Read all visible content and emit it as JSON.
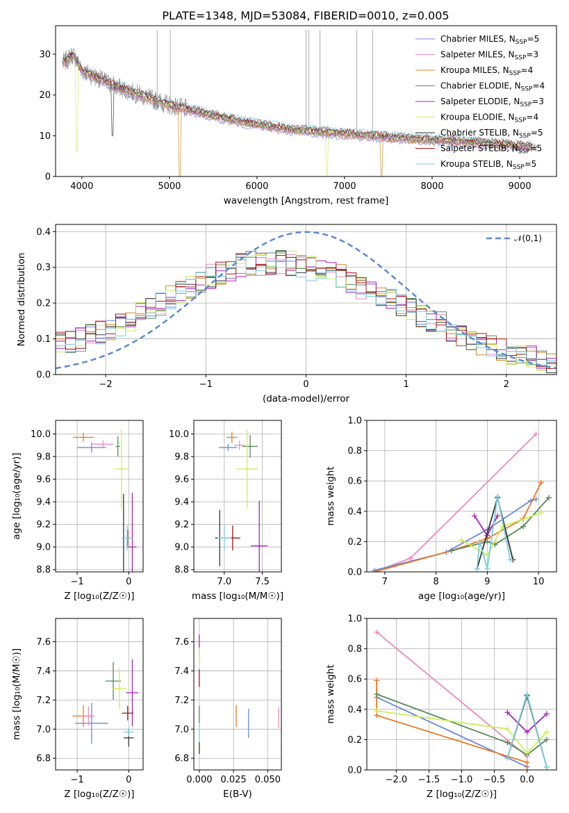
{
  "figure_title": "PLATE=1348, MJD=53084, FIBERID=0010, z=0.005",
  "colors": {
    "Chabrier MILES": "#6688dd",
    "Salpeter MILES": "#ee88bb",
    "Kroupa MILES": "#cc8822",
    "Chabrier ELODIE": "#558855",
    "Salpeter ELODIE": "#aa22bb",
    "Kroupa ELODIE": "#ccee55",
    "Chabrier STELIB": "#333333",
    "Salpeter STELIB": "#aa1111",
    "Kroupa STELIB": "#77ccdd",
    "extra_orange": "#ee7722",
    "gauss": "#5b88d6"
  },
  "chart_data": [
    {
      "id": "spectrum",
      "type": "line",
      "xlabel": "wavelength [Angstrom, rest frame]",
      "xlim": [
        3700,
        9420
      ],
      "ylim": [
        0,
        37
      ],
      "xticks": [
        "4000",
        "5000",
        "6000",
        "7000",
        "8000",
        "9000"
      ],
      "yticks": [
        "0",
        "10",
        "20",
        "30"
      ],
      "legend_position": "upper right",
      "legend": [
        {
          "name": "Chabrier MILES",
          "suffix": "=5"
        },
        {
          "name": "Salpeter MILES",
          "suffix": "=3"
        },
        {
          "name": "Kroupa MILES",
          "suffix": "=4"
        },
        {
          "name": "Chabrier ELODIE",
          "suffix": "=4"
        },
        {
          "name": "Salpeter ELODIE",
          "suffix": "=3"
        },
        {
          "name": "Kroupa ELODIE",
          "suffix": "=4"
        },
        {
          "name": "Chabrier STELIB",
          "suffix": "=5"
        },
        {
          "name": "Salpeter STELIB",
          "suffix": "=5"
        },
        {
          "name": "Kroupa STELIB",
          "suffix": "=5"
        }
      ],
      "continuum_x": [
        3800,
        3900,
        4000,
        4200,
        4400,
        4600,
        4800,
        5000,
        5200,
        5500,
        5800,
        6100,
        6400,
        6700,
        7000,
        7400,
        7800,
        8200,
        8600,
        9000,
        9200
      ],
      "continuum_y": [
        28,
        30,
        26,
        24,
        22,
        20.5,
        19,
        17.5,
        16.5,
        15,
        13.5,
        12.5,
        11.5,
        11,
        10.5,
        9.8,
        9.2,
        8.8,
        8.2,
        7.5,
        7.2
      ]
    },
    {
      "id": "residuals",
      "type": "area",
      "xlabel": "(data-model)/error",
      "ylabel": "Normed distribution",
      "xlim": [
        -2.5,
        2.5
      ],
      "ylim": [
        0,
        0.42
      ],
      "xticks": [
        "−2",
        "−1",
        "0",
        "1",
        "2"
      ],
      "yticks": [
        "0.0",
        "0.1",
        "0.2",
        "0.3",
        "0.4"
      ],
      "legend": "𝒩(0,1)",
      "legend_position": "upper right",
      "bin_width": 0.1,
      "profile_x": [
        -2.5,
        -2.0,
        -1.5,
        -1.0,
        -0.6,
        -0.2,
        0.0,
        0.3,
        0.6,
        1.0,
        1.5,
        2.0,
        2.5
      ],
      "profile_y": [
        0.08,
        0.12,
        0.19,
        0.27,
        0.31,
        0.315,
        0.3,
        0.28,
        0.24,
        0.19,
        0.12,
        0.06,
        0.03
      ]
    },
    {
      "id": "age-vs-Z",
      "type": "scatter",
      "xlabel": "Z [log₁₀(Z/Z☉)]",
      "ylabel": "age  [log₁₀(age/yr)]",
      "xlim": [
        -1.42,
        0.28
      ],
      "ylim": [
        8.78,
        10.12
      ],
      "xticks": [
        "−1",
        "0"
      ],
      "yticks": [
        "8.8",
        "9.0",
        "9.2",
        "9.4",
        "9.6",
        "9.8",
        "10.0"
      ],
      "points": [
        {
          "color": "Chabrier MILES",
          "x": -0.72,
          "y": 9.88,
          "dx": 0.56,
          "dy": 0.09
        },
        {
          "color": "extra_orange",
          "x": -0.88,
          "y": 9.97,
          "dx": 0.4,
          "dy": 0.08
        },
        {
          "color": "Salpeter MILES",
          "x": -0.5,
          "y": 9.91,
          "dx": 0.4,
          "dy": 0.07
        },
        {
          "color": "Chabrier ELODIE",
          "x": -0.21,
          "y": 9.89,
          "dx": 0.08,
          "dy": 0.18
        },
        {
          "color": "Salpeter ELODIE",
          "x": 0.07,
          "y": 9.0,
          "dx": 0.16,
          "dy": 0.96
        },
        {
          "color": "Kroupa ELODIE",
          "x": -0.14,
          "y": 9.69,
          "dx": 0.28,
          "dy": 0.7
        },
        {
          "color": "Chabrier STELIB",
          "x": -0.1,
          "y": 9.08,
          "dx": 0.04,
          "dy": 0.78
        },
        {
          "color": "Salpeter STELIB",
          "x": -0.02,
          "y": 9.08,
          "dx": 0.04,
          "dy": 0.15
        },
        {
          "color": "Kroupa STELIB",
          "x": -0.03,
          "y": 9.08,
          "dx": 0.22,
          "dy": 0.22
        }
      ]
    },
    {
      "id": "age-vs-mass",
      "type": "scatter",
      "xlabel": "mass [log₁₀(M/M☉)]",
      "xlim": [
        6.6,
        7.75
      ],
      "ylim": [
        8.78,
        10.12
      ],
      "xticks": [
        "7.0",
        "7.5"
      ],
      "yticks": [
        "8.8",
        "9.0",
        "9.2",
        "9.4",
        "9.6",
        "9.8",
        "10.0"
      ],
      "points": [
        {
          "color": "Chabrier MILES",
          "x": 7.05,
          "y": 9.88,
          "dx": 0.24,
          "dy": 0.06
        },
        {
          "color": "extra_orange",
          "x": 7.1,
          "y": 9.97,
          "dx": 0.14,
          "dy": 0.1
        },
        {
          "color": "Salpeter MILES",
          "x": 7.2,
          "y": 9.9,
          "dx": 0.14,
          "dy": 0.08
        },
        {
          "color": "Chabrier ELODIE",
          "x": 7.34,
          "y": 9.89,
          "dx": 0.2,
          "dy": 0.2
        },
        {
          "color": "Salpeter ELODIE",
          "x": 7.46,
          "y": 9.01,
          "dx": 0.22,
          "dy": 0.8
        },
        {
          "color": "Kroupa ELODIE",
          "x": 7.3,
          "y": 9.69,
          "dx": 0.28,
          "dy": 0.7
        },
        {
          "color": "Chabrier STELIB",
          "x": 6.94,
          "y": 9.08,
          "dx": 0.12,
          "dy": 0.5
        },
        {
          "color": "Salpeter STELIB",
          "x": 7.11,
          "y": 9.08,
          "dx": 0.2,
          "dy": 0.22
        },
        {
          "color": "Kroupa STELIB",
          "x": 7.0,
          "y": 9.08,
          "dx": 0.18,
          "dy": 0.22
        }
      ]
    },
    {
      "id": "massweight-vs-age",
      "type": "line",
      "xlabel": "age  [log₁₀(age/yr)]",
      "ylabel": "mass weight",
      "xlim": [
        6.65,
        10.35
      ],
      "ylim": [
        0,
        1.0
      ],
      "xticks": [
        "7",
        "8",
        "9",
        "10"
      ],
      "yticks": [
        "0.0",
        "0.2",
        "0.4",
        "0.6",
        "0.8",
        "1.0"
      ],
      "series": [
        {
          "color": "Salpeter MILES",
          "x": [
            6.8,
            7.5,
            9.95
          ],
          "y": [
            0.0,
            0.09,
            0.91
          ]
        },
        {
          "color": "Chabrier MILES",
          "x": [
            6.8,
            8.2,
            9.0,
            9.85,
            9.95
          ],
          "y": [
            0.01,
            0.13,
            0.28,
            0.47,
            0.48
          ]
        },
        {
          "color": "extra_orange",
          "x": [
            6.8,
            8.3,
            9.0,
            9.7,
            10.05
          ],
          "y": [
            0.0,
            0.14,
            0.22,
            0.35,
            0.59
          ]
        },
        {
          "color": "Chabrier ELODIE",
          "x": [
            8.3,
            9.0,
            9.15,
            9.7,
            10.2
          ],
          "y": [
            0.14,
            0.2,
            0.18,
            0.3,
            0.49
          ]
        },
        {
          "color": "Salpeter ELODIE",
          "x": [
            8.75,
            9.0,
            9.2
          ],
          "y": [
            0.37,
            0.24,
            0.37
          ]
        },
        {
          "color": "Kroupa ELODIE",
          "x": [
            8.5,
            9.0,
            9.3,
            10.05
          ],
          "y": [
            0.21,
            0.11,
            0.3,
            0.39
          ]
        },
        {
          "color": "Chabrier STELIB",
          "x": [
            8.8,
            9.2,
            9.5
          ],
          "y": [
            0.02,
            0.49,
            0.08
          ]
        },
        {
          "color": "Kroupa STELIB",
          "x": [
            8.8,
            8.85,
            9.0,
            9.2,
            9.45
          ],
          "y": [
            0.02,
            0.2,
            0.02,
            0.5,
            0.08
          ]
        }
      ]
    },
    {
      "id": "mass-vs-Z",
      "type": "scatter",
      "xlabel": "Z [log₁₀(Z/Z☉)]",
      "ylabel": "mass [log₁₀(M/M☉)]",
      "xlim": [
        -1.42,
        0.28
      ],
      "ylim": [
        6.72,
        7.76
      ],
      "xticks": [
        "−1",
        "0"
      ],
      "yticks": [
        "6.8",
        "7.0",
        "7.2",
        "7.4",
        "7.6"
      ],
      "points": [
        {
          "color": "Chabrier MILES",
          "x": -0.72,
          "y": 7.04,
          "dx": 0.64,
          "dy": 0.28
        },
        {
          "color": "extra_orange",
          "x": -0.88,
          "y": 7.09,
          "dx": 0.42,
          "dy": 0.15
        },
        {
          "color": "Salpeter MILES",
          "x": -0.78,
          "y": 7.09,
          "dx": 0.2,
          "dy": 0.13
        },
        {
          "color": "Chabrier ELODIE",
          "x": -0.3,
          "y": 7.33,
          "dx": 0.3,
          "dy": 0.26
        },
        {
          "color": "Salpeter ELODIE",
          "x": 0.07,
          "y": 7.25,
          "dx": 0.24,
          "dy": 0.46
        },
        {
          "color": "Kroupa ELODIE",
          "x": -0.18,
          "y": 7.28,
          "dx": 0.28,
          "dy": 0.28
        },
        {
          "color": "Chabrier STELIB",
          "x": 0.0,
          "y": 6.94,
          "dx": 0.2,
          "dy": 0.12
        },
        {
          "color": "Salpeter STELIB",
          "x": -0.02,
          "y": 7.11,
          "dx": 0.22,
          "dy": 0.1
        },
        {
          "color": "Kroupa STELIB",
          "x": 0.0,
          "y": 6.98,
          "dx": 0.2,
          "dy": 0.06
        }
      ]
    },
    {
      "id": "mass-vs-ebv",
      "type": "scatter",
      "xlabel": "E(B-V)",
      "xlim": [
        -0.004,
        0.06
      ],
      "ylim": [
        6.72,
        7.76
      ],
      "xticks": [
        "0.000",
        "0.025",
        "0.050"
      ],
      "yticks": [
        "6.8",
        "7.0",
        "7.2",
        "7.4",
        "7.6"
      ],
      "points": [
        {
          "color": "Salpeter ELODIE",
          "x": 0.0,
          "y": 7.58,
          "dx": 0,
          "dy": 0.14
        },
        {
          "color": "Kroupa ELODIE",
          "x": 0.0,
          "y": 7.5,
          "dx": 0,
          "dy": 0.12
        },
        {
          "color": "Salpeter STELIB",
          "x": 0.0,
          "y": 7.35,
          "dx": 0,
          "dy": 0.12
        },
        {
          "color": "Chabrier ELODIE",
          "x": 0.0,
          "y": 7.1,
          "dx": 0,
          "dy": 0.12
        },
        {
          "color": "Kroupa STELIB",
          "x": 0.0,
          "y": 6.97,
          "dx": 0,
          "dy": 0.12
        },
        {
          "color": "Chabrier STELIB",
          "x": 0.0,
          "y": 6.87,
          "dx": 0,
          "dy": 0.08
        },
        {
          "color": "extra_orange",
          "x": 0.027,
          "y": 7.09,
          "dx": 0,
          "dy": 0.15
        },
        {
          "color": "Chabrier MILES",
          "x": 0.036,
          "y": 7.04,
          "dx": 0,
          "dy": 0.2
        },
        {
          "color": "Salpeter MILES",
          "x": 0.058,
          "y": 7.08,
          "dx": 0,
          "dy": 0.14
        }
      ]
    },
    {
      "id": "massweight-vs-Z",
      "type": "line",
      "xlabel": "Z [log₁₀(Z/Z☉)]",
      "ylabel": "mass weight",
      "xlim": [
        -2.45,
        0.45
      ],
      "ylim": [
        0,
        1.0
      ],
      "xticks": [
        "−2.0",
        "−1.5",
        "−1.0",
        "−0.5",
        "0.0"
      ],
      "yticks": [
        "0.0",
        "0.2",
        "0.4",
        "0.6",
        "0.8",
        "1.0"
      ],
      "series": [
        {
          "color": "Salpeter MILES",
          "x": [
            -2.3,
            0.0
          ],
          "y": [
            0.91,
            0.09
          ]
        },
        {
          "color": "Chabrier MILES",
          "x": [
            -2.3,
            0.0
          ],
          "y": [
            0.48,
            0.02
          ]
        },
        {
          "color": "extra_orange",
          "x": [
            -2.3,
            -2.3,
            0.0,
            0.0
          ],
          "y": [
            0.59,
            0.36,
            0.05,
            0.0
          ]
        },
        {
          "color": "Chabrier ELODIE",
          "x": [
            -2.3,
            -0.3,
            0.0,
            0.3
          ],
          "y": [
            0.5,
            0.18,
            0.1,
            0.2
          ]
        },
        {
          "color": "Kroupa ELODIE",
          "x": [
            -2.3,
            -0.3,
            0.0,
            0.3
          ],
          "y": [
            0.39,
            0.27,
            0.11,
            0.25
          ]
        },
        {
          "color": "Salpeter ELODIE",
          "x": [
            -0.3,
            0.0,
            0.3
          ],
          "y": [
            0.38,
            0.25,
            0.37
          ]
        },
        {
          "color": "Chabrier STELIB",
          "x": [
            -0.3,
            0.0,
            0.3
          ],
          "y": [
            0.08,
            0.49,
            0.02
          ]
        },
        {
          "color": "Kroupa STELIB",
          "x": [
            -0.3,
            0.0,
            0.3
          ],
          "y": [
            0.08,
            0.5,
            0.02
          ]
        }
      ]
    }
  ]
}
